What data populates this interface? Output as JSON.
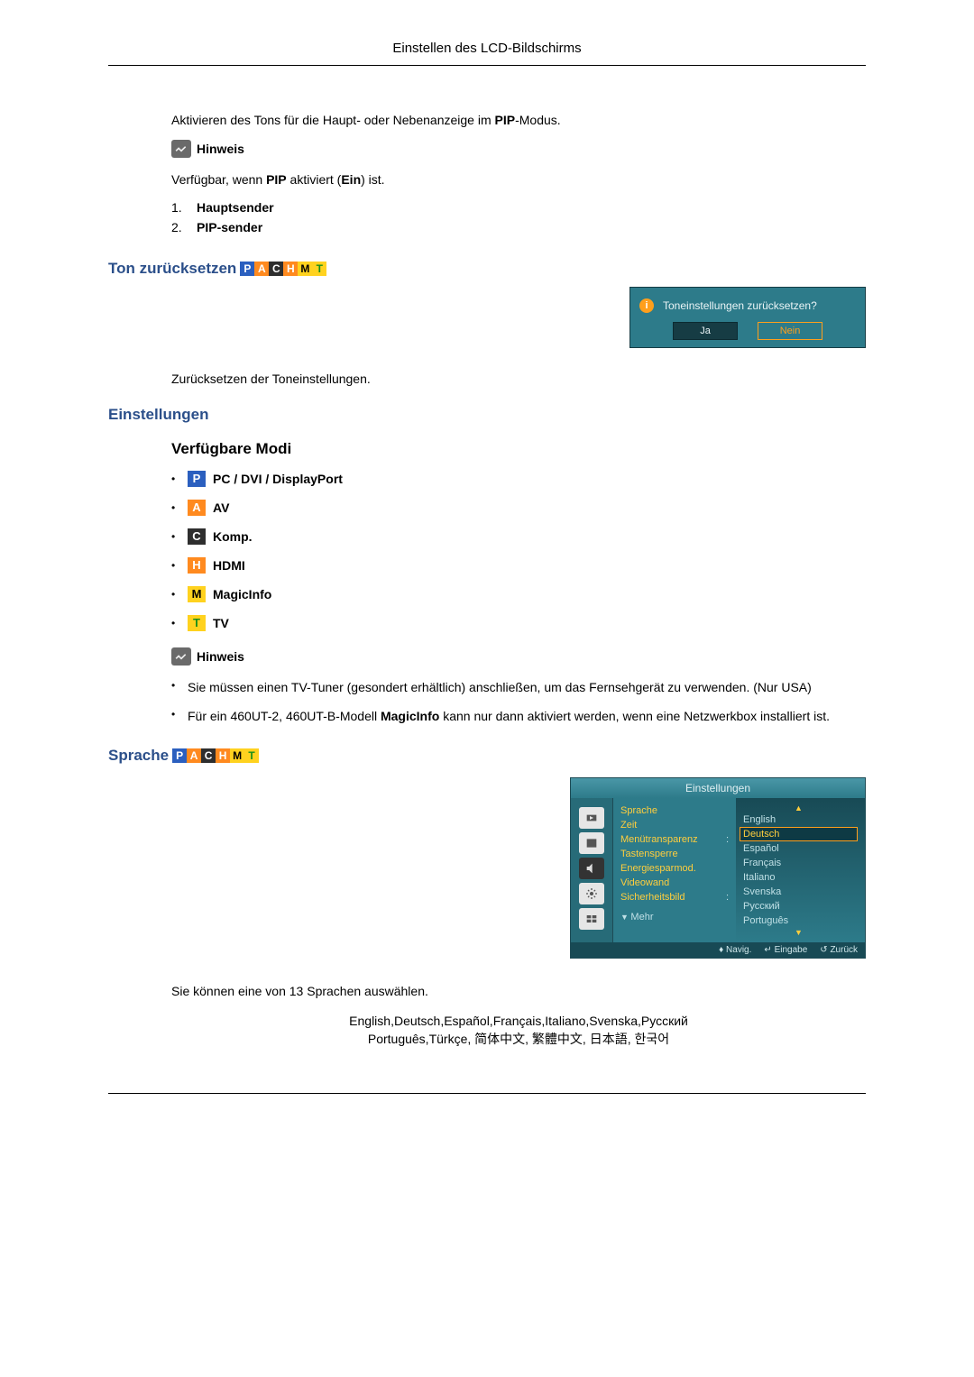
{
  "header": {
    "title": "Einstellen des LCD-Bildschirms"
  },
  "intro": {
    "line": [
      "Aktivieren des Tons für die Haupt- oder Nebenanzeige im ",
      "PIP",
      "-Modus."
    ]
  },
  "noteLabel": "Hinweis",
  "avail": {
    "parts": [
      "Verfügbar, wenn ",
      "PIP",
      " aktiviert (",
      "Ein",
      ") ist."
    ]
  },
  "senders": [
    {
      "n": "1.",
      "label": "Hauptsender"
    },
    {
      "n": "2.",
      "label": "PIP-sender"
    }
  ],
  "sound_reset": {
    "title": "Ton zurücksetzen",
    "dialog": {
      "q": "Toneinstellungen zurücksetzen?",
      "yes": "Ja",
      "no": "Nein"
    },
    "desc": "Zurücksetzen der Toneinstellungen."
  },
  "settings_h": "Einstellungen",
  "modes_h": "Verfügbare Modi",
  "mode_badges": {
    "P": {
      "bg": "#2b5fbf",
      "t": "P"
    },
    "A": {
      "bg": "#ff8a1f",
      "t": "A"
    },
    "C": {
      "bg": "#2e2e2e",
      "t": "C"
    },
    "H": {
      "bg": "#ff8a1f",
      "t": "H"
    },
    "M": {
      "bg": "#ffd21f",
      "t": "M",
      "fg": "#000"
    },
    "T": {
      "bg": "#ffd21f",
      "t": "T",
      "fg": "#1a8f1a"
    }
  },
  "modes": [
    {
      "badge": "P",
      "label": "PC / DVI / DisplayPort"
    },
    {
      "badge": "A",
      "label": "AV"
    },
    {
      "badge": "C",
      "label": "Komp."
    },
    {
      "badge": "H",
      "label": "HDMI"
    },
    {
      "badge": "M",
      "label": "MagicInfo"
    },
    {
      "badge": "T",
      "label": "TV"
    }
  ],
  "notes": [
    "Sie müssen einen TV-Tuner (gesondert erhältlich) anschließen, um das Fernsehgerät zu verwenden. (Nur USA)",
    [
      "Für ein 460UT-2, 460UT-B-Modell ",
      "MagicInfo",
      " kann nur dann aktiviert werden, wenn eine Netzwerkbox installiert ist."
    ]
  ],
  "sprache": {
    "title": "Sprache",
    "panel": {
      "title": "Einstellungen",
      "menu": [
        "Sprache",
        "Zeit",
        "Menütransparenz",
        "Tastensperre",
        "Energiesparmod.",
        "Videowand",
        "Sicherheitsbild"
      ],
      "more": "Mehr",
      "values": [
        "English",
        "Deutsch",
        "Español",
        "Français",
        "Italiano",
        "Svenska",
        "Русский",
        "Português"
      ],
      "selected_index": 1,
      "colon": ":",
      "foot": {
        "nav": "Navig.",
        "enter": "Eingabe",
        "back": "Zurück"
      },
      "nav_glyph": "♦",
      "enter_glyph": "↵",
      "back_glyph": "↺"
    },
    "desc": "Sie können eine von 13 Sprachen auswählen.",
    "langs1": "English,Deutsch,Español,Français,Italiano,Svenska,Русский",
    "langs2": "Português,Türkçe, 简体中文,  繁體中文, 日本語, 한국어"
  }
}
